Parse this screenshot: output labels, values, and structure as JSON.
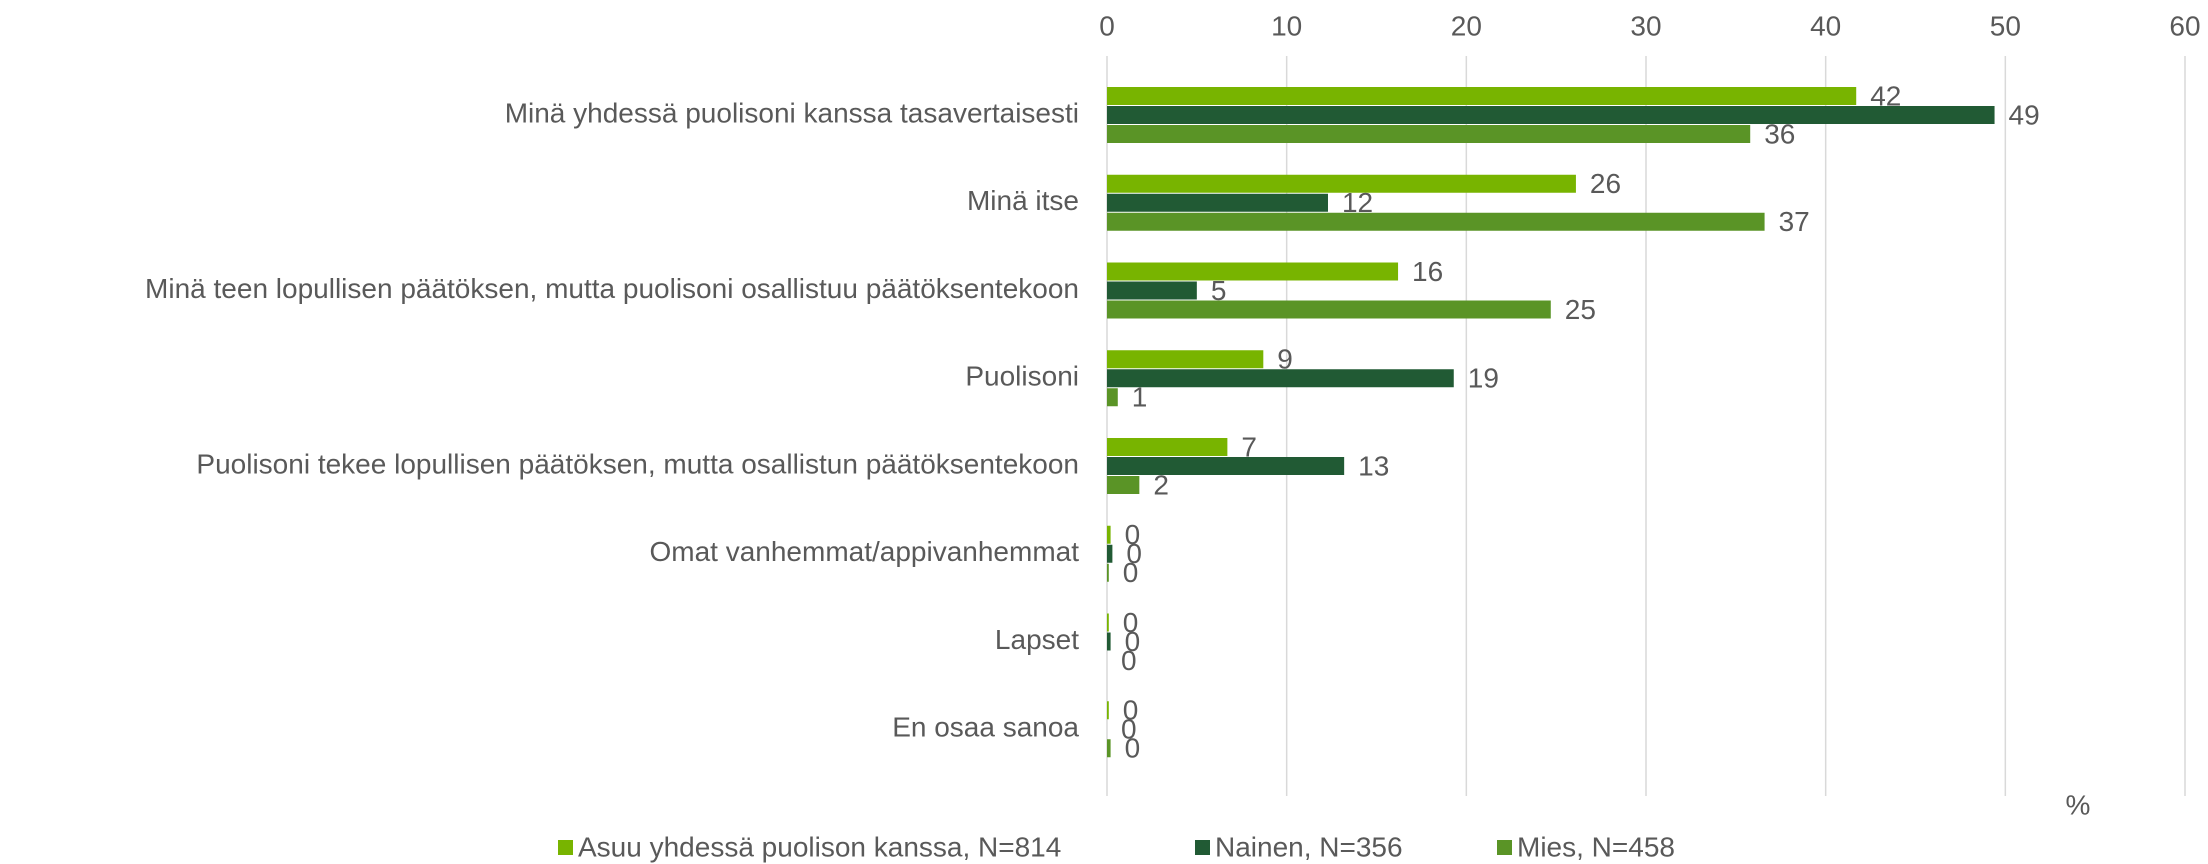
{
  "chart_data": {
    "type": "bar",
    "orientation": "horizontal",
    "categories": [
      "Minä yhdessä puolisoni kanssa tasavertaisesti",
      "Minä itse",
      "Minä teen lopullisen päätöksen, mutta puolisoni osallistuu päätöksentekoon",
      "Puolisoni",
      "Puolisoni tekee lopullisen päätöksen, mutta osallistun päätöksentekoon",
      "Omat vanhemmat/appivanhemmat",
      "Lapset",
      "En osaa sanoa"
    ],
    "series": [
      {
        "name": "Asuu yhdessä puolison kanssa, N=814",
        "color": "#78b400",
        "values": [
          41.7,
          26.1,
          16.2,
          8.7,
          6.7,
          0.2,
          0.1,
          0.1
        ],
        "value_labels": [
          "42",
          "26",
          "16",
          "9",
          "7",
          "0",
          "0",
          "0"
        ]
      },
      {
        "name": "Nainen, N=356",
        "color": "#215a34",
        "values": [
          49.4,
          12.3,
          5.0,
          19.3,
          13.2,
          0.3,
          0.2,
          0
        ],
        "value_labels": [
          "49",
          "12",
          "5",
          "19",
          "13",
          "0",
          "0",
          "0"
        ]
      },
      {
        "name": "Mies, N=458",
        "color": "#5a9426",
        "values": [
          35.8,
          36.6,
          24.7,
          0.6,
          1.8,
          0.1,
          0,
          0.2
        ],
        "value_labels": [
          "36",
          "37",
          "25",
          "1",
          "2",
          "0",
          "0",
          "0"
        ]
      }
    ],
    "xlim": [
      0,
      60
    ],
    "xticks": [
      0,
      10,
      20,
      30,
      40,
      50,
      60
    ],
    "xlabel": "%",
    "grid": true,
    "legend": "bottom"
  }
}
